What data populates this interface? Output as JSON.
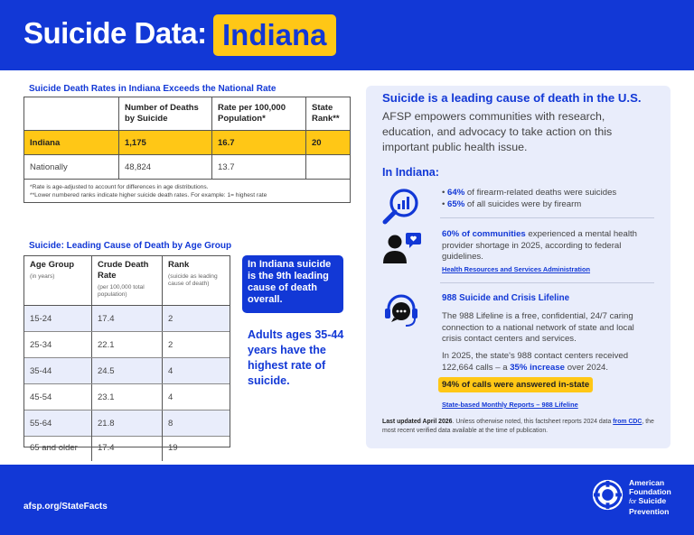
{
  "header": {
    "title": "Suicide Data:",
    "state": "Indiana"
  },
  "table1": {
    "title": "Suicide Death Rates in Indiana Exceeds the National Rate",
    "headers": [
      "",
      "Number of Deaths by Suicide",
      "Rate per 100,000 Population*",
      "State Rank**"
    ],
    "rows": [
      {
        "label": "Indiana",
        "deaths": "1,175",
        "rate": "16.7",
        "rank": "20"
      },
      {
        "label": "Nationally",
        "deaths": "48,824",
        "rate": "13.7",
        "rank": ""
      }
    ],
    "note1": "*Rate is age-adjusted to account for differences in age distributions.",
    "note2": "**Lower numbered ranks indicate higher suicide death rates. For example: 1= highest rate"
  },
  "table2": {
    "title": "Suicide: Leading Cause of Death by Age Group",
    "headers": [
      {
        "label": "Age Group",
        "sub": "(in years)"
      },
      {
        "label": "Crude Death Rate",
        "sub": "(per 100,000 total population)"
      },
      {
        "label": "Rank",
        "sub": "(suicide as leading cause of death)"
      }
    ],
    "rows": [
      {
        "age": "15-24",
        "rate": "17.4",
        "rank": "2"
      },
      {
        "age": "25-34",
        "rate": "22.1",
        "rank": "2"
      },
      {
        "age": "35-44",
        "rate": "24.5",
        "rank": "4"
      },
      {
        "age": "45-54",
        "rate": "23.1",
        "rank": "4"
      },
      {
        "age": "55-64",
        "rate": "21.8",
        "rank": "8"
      },
      {
        "age": "65 and older",
        "rate": "17.4",
        "rank": "19"
      }
    ]
  },
  "callout": "In Indiana suicide is the 9th leading cause of death overall.",
  "adults_note": "Adults ages 35-44 years have the highest rate of suicide.",
  "panel": {
    "heading": "Suicide is a leading cause of death in the U.S.",
    "intro": "AFSP empowers communities with research, education, and advocacy to take action on this important public health issue.",
    "sub_heading": "In Indiana:",
    "bullet1_bold": "64%",
    "bullet1_rest": " of firearm-related deaths were suicides",
    "bullet2_bold": "65%",
    "bullet2_rest": " of all suicides were by firearm",
    "shortage_bold": "60% of communities",
    "shortage_rest": " experienced a mental health provider shortage in 2025, according to federal guidelines.",
    "shortage_source": "Health Resources and Services Administration",
    "lifeline_heading": "988 Suicide and Crisis Lifeline",
    "lifeline_text": "The 988 Lifeline is a free, confidential, 24/7 caring connection to a national network of state and local crisis contact centers and services.",
    "calls_text": "In 2025, the state's 988 contact centers received 122,664 calls – a ",
    "calls_bold": "35% increase",
    "calls_end": " over 2024.",
    "answered": "94% of calls were answered in-state",
    "lifeline_source": "State-based Monthly Reports – 988 Lifeline",
    "updated_bold": "Last updated April 2026",
    "updated_text": ". Unless otherwise noted, this factsheet reports 2024 data ",
    "updated_link": "from CDC",
    "updated_end": ", the most recent verified data available at the time of publication."
  },
  "footer": {
    "url": "afsp.org/StateFacts",
    "logo_line1": "American",
    "logo_line2": "Foundation",
    "logo_line3_pre": "for",
    "logo_line3": " Suicide",
    "logo_line4": "Prevention"
  },
  "colors": {
    "brand_blue": "#1238d6",
    "highlight_yellow": "#ffc716",
    "panel_bg": "#e9edfb"
  }
}
